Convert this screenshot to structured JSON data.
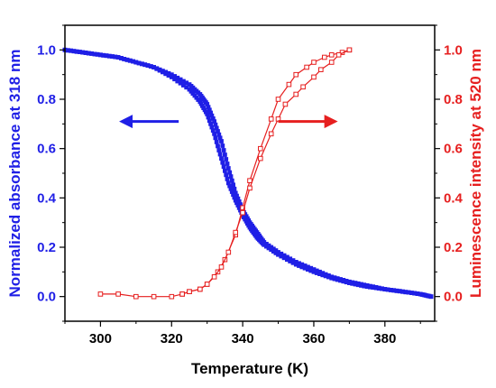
{
  "chart_data": {
    "type": "scatter",
    "title": "",
    "xlabel": "Temperature (K)",
    "ylabel_left": "Normalized absorbance at 318 nm",
    "ylabel_right": "Luminescence intensity at 520 nm",
    "xlim": [
      290,
      394
    ],
    "ylim_left": [
      -0.1,
      1.1
    ],
    "ylim_right": [
      -0.1,
      1.1
    ],
    "x_ticks": [
      "300",
      "320",
      "340",
      "360",
      "380"
    ],
    "y_ticks_left": [
      "0.0",
      "0.2",
      "0.4",
      "0.6",
      "0.8",
      "1.0"
    ],
    "y_ticks_right": [
      "0.0",
      "0.2",
      "0.4",
      "0.6",
      "0.8",
      "1.0"
    ],
    "grid": false,
    "colors": {
      "absorbance": "#1f1fe6",
      "luminescence": "#e61f1f",
      "axis": "#000000"
    },
    "series": [
      {
        "axis": "left",
        "marker": "filled-square",
        "branch": "heating",
        "x": [
          290,
          295,
          300,
          305,
          310,
          315,
          320,
          325,
          328,
          330,
          332,
          334,
          336,
          338,
          340,
          342,
          344,
          346,
          350,
          355,
          360,
          365,
          370,
          375,
          380,
          385,
          390,
          393
        ],
        "values": [
          1.0,
          0.99,
          0.98,
          0.97,
          0.95,
          0.93,
          0.9,
          0.86,
          0.82,
          0.78,
          0.71,
          0.63,
          0.52,
          0.42,
          0.35,
          0.3,
          0.26,
          0.22,
          0.18,
          0.14,
          0.11,
          0.08,
          0.06,
          0.045,
          0.03,
          0.02,
          0.01,
          0.0
        ]
      },
      {
        "axis": "left",
        "marker": "filled-square",
        "branch": "cooling",
        "x": [
          290,
          295,
          300,
          305,
          310,
          315,
          320,
          325,
          328,
          330,
          332,
          334,
          336,
          338,
          340,
          342,
          344,
          346,
          350,
          355,
          360,
          365,
          370,
          375,
          380,
          385,
          390,
          393
        ],
        "values": [
          1.0,
          0.99,
          0.98,
          0.97,
          0.95,
          0.93,
          0.89,
          0.84,
          0.79,
          0.74,
          0.66,
          0.56,
          0.46,
          0.39,
          0.33,
          0.28,
          0.24,
          0.21,
          0.17,
          0.13,
          0.1,
          0.075,
          0.055,
          0.04,
          0.03,
          0.02,
          0.01,
          0.0
        ]
      },
      {
        "axis": "right",
        "marker": "open-square",
        "branch": "heating",
        "x": [
          300,
          305,
          310,
          315,
          320,
          323,
          325,
          328,
          330,
          333,
          335,
          338,
          340,
          342,
          345,
          348,
          350,
          353,
          355,
          358,
          360,
          363,
          365,
          368,
          370
        ],
        "values": [
          0.01,
          0.01,
          0.0,
          0.0,
          0.0,
          0.01,
          0.02,
          0.03,
          0.05,
          0.1,
          0.15,
          0.25,
          0.36,
          0.47,
          0.6,
          0.72,
          0.8,
          0.86,
          0.9,
          0.93,
          0.95,
          0.97,
          0.98,
          0.99,
          1.0
        ]
      },
      {
        "axis": "right",
        "marker": "open-square",
        "branch": "cooling",
        "x": [
          370,
          367,
          365,
          362,
          360,
          357,
          355,
          352,
          350,
          348,
          345,
          342,
          340,
          338,
          336,
          334,
          332,
          330,
          328,
          325,
          323
        ],
        "values": [
          1.0,
          0.98,
          0.95,
          0.92,
          0.89,
          0.85,
          0.82,
          0.78,
          0.72,
          0.66,
          0.56,
          0.44,
          0.34,
          0.26,
          0.18,
          0.12,
          0.08,
          0.05,
          0.03,
          0.02,
          0.01
        ]
      }
    ],
    "annotations": [
      {
        "type": "arrow",
        "direction": "left",
        "color": "#1f1fe6",
        "from_x": 322,
        "to_x": 306,
        "y_left": 0.71
      },
      {
        "type": "arrow",
        "direction": "right",
        "color": "#e61f1f",
        "from_x": 350,
        "to_x": 366,
        "y_right": 0.71
      }
    ]
  }
}
